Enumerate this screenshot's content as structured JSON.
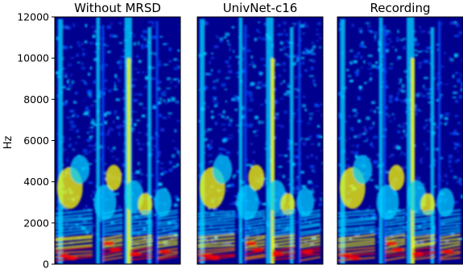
{
  "chart_data": {
    "type": "heatmap",
    "panels": [
      {
        "title": "Without MRSD"
      },
      {
        "title": "UnivNet-c16"
      },
      {
        "title": "Recording"
      }
    ],
    "ylabel": "Hz",
    "ylim": [
      0,
      12000
    ],
    "yticks": [
      "0",
      "2000",
      "4000",
      "6000",
      "8000",
      "10000",
      "12000"
    ],
    "colormap": "jet",
    "colors": {
      "low": "#00008f",
      "mid_low": "#0050ff",
      "mid": "#00d0ff",
      "mid_high": "#ffff00",
      "high": "#ff0000"
    }
  }
}
